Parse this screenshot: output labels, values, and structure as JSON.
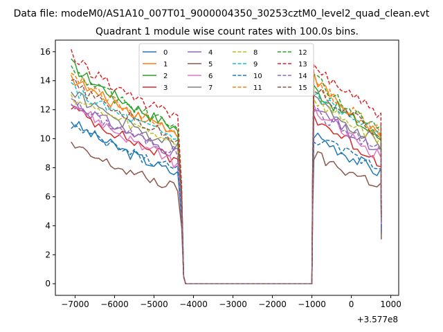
{
  "figure": {
    "suptitle": "Data file: modeM0/AS1A10_007T01_9000004350_30253cztM0_level2_quad_clean.evt",
    "title": "Quadrant 1 module wise count rates with 100.0s bins.",
    "x_offset_label": "+3.577e8"
  },
  "chart_data": {
    "type": "line",
    "title": "Quadrant 1 module wise count rates with 100.0s bins.",
    "xlabel": "",
    "ylabel": "",
    "x_offset": 357700000,
    "xlim": [
      -7500,
      1200
    ],
    "ylim": [
      -0.8,
      16.8
    ],
    "xticks": [
      -7000,
      -6000,
      -5000,
      -4000,
      -3000,
      -2000,
      -1000,
      0,
      1000
    ],
    "yticks": [
      0,
      2,
      4,
      6,
      8,
      10,
      12,
      14,
      16
    ],
    "xtick_labels": [
      "−7000",
      "−6000",
      "−5000",
      "−4000",
      "−3000",
      "−2000",
      "−1000",
      "0",
      "1000"
    ],
    "ytick_labels": [
      "0",
      "2",
      "4",
      "6",
      "8",
      "10",
      "12",
      "14",
      "16"
    ],
    "legend_position": "upper-center",
    "legend_columns": 4,
    "gap": {
      "low_start": -4200,
      "low_end": -1000,
      "low_value": 0.0
    },
    "segment1": {
      "x_start": -7100,
      "x_end": -4350
    },
    "segment2": {
      "x_start": -950,
      "x_end": 750
    },
    "series": [
      {
        "name": "0",
        "color": "#1f77b4",
        "dash": "solid",
        "start1": 11.3,
        "end1": 7.5,
        "start2": 10.4,
        "end2": 7.6
      },
      {
        "name": "1",
        "color": "#ff7f0e",
        "dash": "solid",
        "start1": 14.3,
        "end1": 10.4,
        "start2": 14.2,
        "end2": 10.0
      },
      {
        "name": "2",
        "color": "#2ca02c",
        "dash": "solid",
        "start1": 15.2,
        "end1": 10.6,
        "start2": 13.5,
        "end2": 10.0
      },
      {
        "name": "3",
        "color": "#d62728",
        "dash": "solid",
        "start1": 12.3,
        "end1": 8.4,
        "start2": 11.6,
        "end2": 8.4
      },
      {
        "name": "4",
        "color": "#9467bd",
        "dash": "solid",
        "start1": 12.8,
        "end1": 8.9,
        "start2": 12.2,
        "end2": 9.0
      },
      {
        "name": "5",
        "color": "#8c564b",
        "dash": "solid",
        "start1": 9.6,
        "end1": 6.5,
        "start2": 8.9,
        "end2": 6.8
      },
      {
        "name": "6",
        "color": "#e377c2",
        "dash": "solid",
        "start1": 12.7,
        "end1": 8.2,
        "start2": 12.0,
        "end2": 8.8
      },
      {
        "name": "7",
        "color": "#7f7f7f",
        "dash": "solid",
        "start1": 13.4,
        "end1": 9.3,
        "start2": 12.8,
        "end2": 9.6
      },
      {
        "name": "8",
        "color": "#bcbd22",
        "dash": "dashed",
        "start1": 13.0,
        "end1": 9.7,
        "start2": 12.7,
        "end2": 9.9
      },
      {
        "name": "9",
        "color": "#17becf",
        "dash": "dashed",
        "start1": 13.6,
        "end1": 9.9,
        "start2": 13.2,
        "end2": 10.2
      },
      {
        "name": "10",
        "color": "#1f77b4",
        "dash": "dashed",
        "start1": 11.0,
        "end1": 7.8,
        "start2": 10.1,
        "end2": 8.0
      },
      {
        "name": "11",
        "color": "#ff7f0e",
        "dash": "dashed",
        "start1": 14.6,
        "end1": 10.3,
        "start2": 14.0,
        "end2": 10.4
      },
      {
        "name": "12",
        "color": "#2ca02c",
        "dash": "dashed",
        "start1": 14.9,
        "end1": 10.6,
        "start2": 14.2,
        "end2": 10.5
      },
      {
        "name": "13",
        "color": "#d62728",
        "dash": "dashed",
        "start1": 15.8,
        "end1": 11.3,
        "start2": 15.1,
        "end2": 11.6
      },
      {
        "name": "14",
        "color": "#9467bd",
        "dash": "dashed",
        "start1": 12.6,
        "end1": 9.0,
        "start2": 12.0,
        "end2": 9.2
      },
      {
        "name": "15",
        "color": "#8c564b",
        "dash": "dashed",
        "start1": 14.0,
        "end1": 9.9,
        "start2": 13.6,
        "end2": 10.2
      }
    ]
  }
}
